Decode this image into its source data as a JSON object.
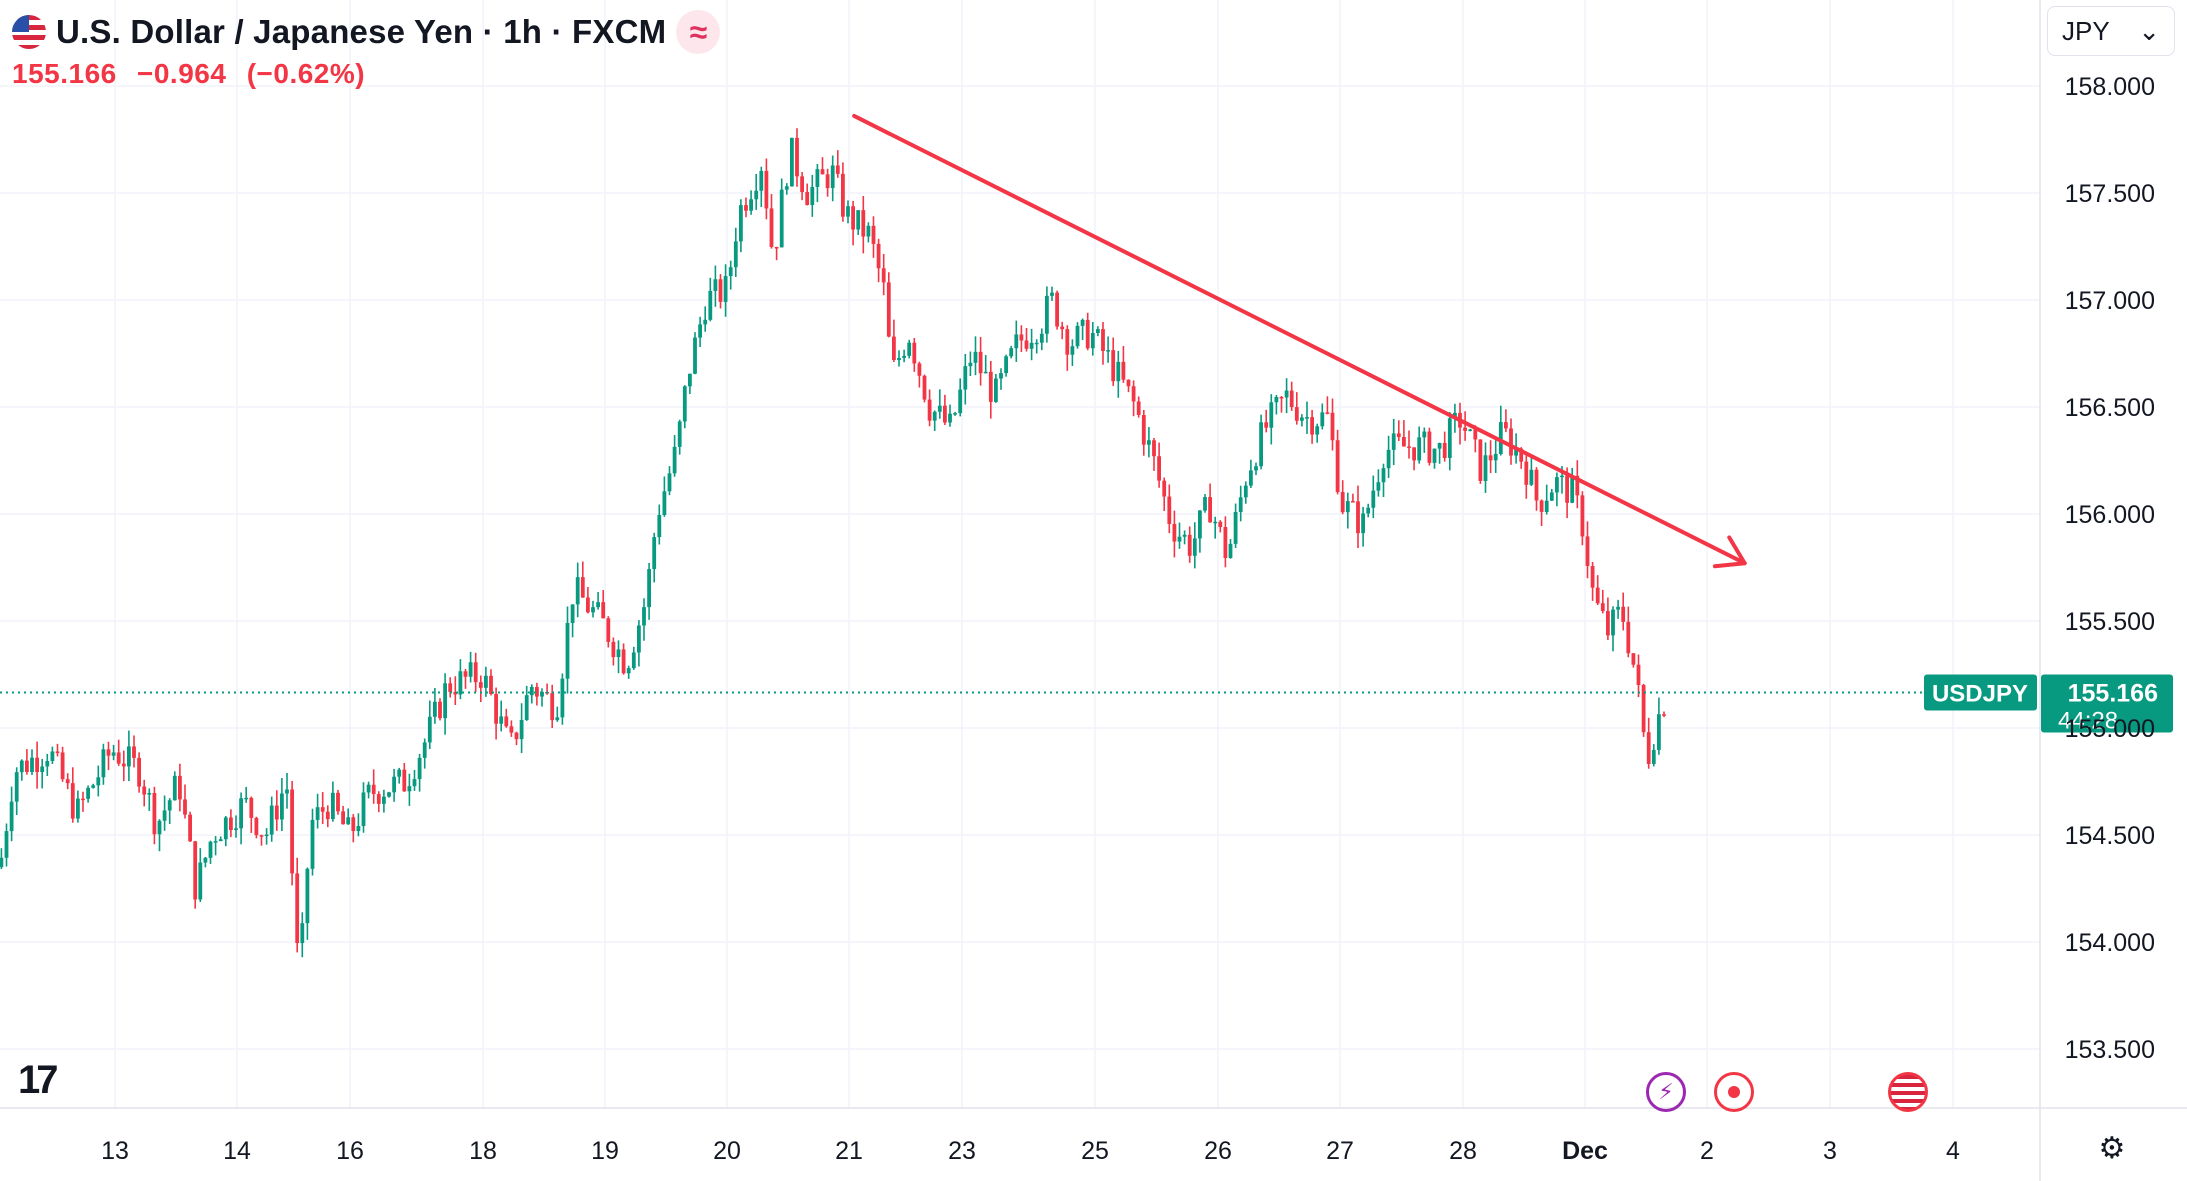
{
  "header": {
    "title": "U.S. Dollar / Japanese Yen · 1h · FXCM",
    "approx_symbol": "≈",
    "price": "155.166",
    "change": "−0.964",
    "change_pct": "(−0.62%)"
  },
  "currency_select": {
    "value": "JPY",
    "chevron": "⌄"
  },
  "price_tag": {
    "symbol": "USDJPY",
    "price": "155.166",
    "countdown": "44:28",
    "color": "#089981"
  },
  "colors": {
    "up": "#089981",
    "down": "#f23645",
    "trendline": "#f23645",
    "grid": "#f0f3fa"
  },
  "icons": [
    "tradingview-logo",
    "lightning-event-icon",
    "record-event-icon",
    "us-flag-event-icon",
    "settings-icon",
    "flag-icon"
  ],
  "chart_data": {
    "type": "candlestick",
    "title": "U.S. Dollar / Japanese Yen · 1h · FXCM",
    "y_ticks": [
      "158.000",
      "157.500",
      "157.000",
      "156.500",
      "156.000",
      "155.500",
      "155.000",
      "154.500",
      "154.000",
      "153.500"
    ],
    "x_ticks": [
      "13",
      "14",
      "16",
      "18",
      "19",
      "20",
      "21",
      "23",
      "25",
      "26",
      "27",
      "28",
      "Dec",
      "2",
      "3",
      "4"
    ],
    "ylim": [
      153.3,
      158.4
    ],
    "last_price": 155.166,
    "path_points": [
      {
        "x": 0,
        "y": 154.35
      },
      {
        "x": 10,
        "y": 154.8
      },
      {
        "x": 35,
        "y": 154.9
      },
      {
        "x": 55,
        "y": 154.6
      },
      {
        "x": 80,
        "y": 154.9
      },
      {
        "x": 100,
        "y": 154.8
      },
      {
        "x": 112,
        "y": 154.55
      },
      {
        "x": 128,
        "y": 154.75
      },
      {
        "x": 140,
        "y": 154.25
      },
      {
        "x": 152,
        "y": 154.5
      },
      {
        "x": 175,
        "y": 154.65
      },
      {
        "x": 190,
        "y": 154.5
      },
      {
        "x": 205,
        "y": 154.75
      },
      {
        "x": 214,
        "y": 153.8
      },
      {
        "x": 222,
        "y": 154.55
      },
      {
        "x": 235,
        "y": 154.65
      },
      {
        "x": 250,
        "y": 154.5
      },
      {
        "x": 265,
        "y": 154.7
      },
      {
        "x": 290,
        "y": 154.75
      },
      {
        "x": 305,
        "y": 154.95
      },
      {
        "x": 320,
        "y": 155.2
      },
      {
        "x": 345,
        "y": 155.25
      },
      {
        "x": 365,
        "y": 154.9
      },
      {
        "x": 380,
        "y": 155.2
      },
      {
        "x": 398,
        "y": 155.1
      },
      {
        "x": 410,
        "y": 155.65
      },
      {
        "x": 430,
        "y": 155.5
      },
      {
        "x": 448,
        "y": 155.3
      },
      {
        "x": 462,
        "y": 155.6
      },
      {
        "x": 470,
        "y": 156.0
      },
      {
        "x": 484,
        "y": 156.3
      },
      {
        "x": 492,
        "y": 156.65
      },
      {
        "x": 505,
        "y": 157.0
      },
      {
        "x": 520,
        "y": 157.05
      },
      {
        "x": 528,
        "y": 157.4
      },
      {
        "x": 545,
        "y": 157.65
      },
      {
        "x": 553,
        "y": 157.2
      },
      {
        "x": 565,
        "y": 157.7
      },
      {
        "x": 578,
        "y": 157.5
      },
      {
        "x": 595,
        "y": 157.6
      },
      {
        "x": 605,
        "y": 157.4
      },
      {
        "x": 622,
        "y": 157.3
      },
      {
        "x": 632,
        "y": 157.05
      },
      {
        "x": 638,
        "y": 156.65
      },
      {
        "x": 650,
        "y": 156.85
      },
      {
        "x": 665,
        "y": 156.5
      },
      {
        "x": 680,
        "y": 156.4
      },
      {
        "x": 695,
        "y": 156.75
      },
      {
        "x": 712,
        "y": 156.55
      },
      {
        "x": 728,
        "y": 156.8
      },
      {
        "x": 745,
        "y": 156.9
      },
      {
        "x": 752,
        "y": 157.0
      },
      {
        "x": 765,
        "y": 156.8
      },
      {
        "x": 780,
        "y": 156.85
      },
      {
        "x": 795,
        "y": 156.7
      },
      {
        "x": 812,
        "y": 156.5
      },
      {
        "x": 825,
        "y": 156.25
      },
      {
        "x": 838,
        "y": 155.95
      },
      {
        "x": 852,
        "y": 155.85
      },
      {
        "x": 865,
        "y": 156.05
      },
      {
        "x": 878,
        "y": 155.8
      },
      {
        "x": 892,
        "y": 156.2
      },
      {
        "x": 905,
        "y": 156.4
      },
      {
        "x": 920,
        "y": 156.55
      },
      {
        "x": 935,
        "y": 156.45
      },
      {
        "x": 950,
        "y": 156.45
      },
      {
        "x": 960,
        "y": 156.05
      },
      {
        "x": 975,
        "y": 155.95
      },
      {
        "x": 990,
        "y": 156.3
      },
      {
        "x": 1010,
        "y": 156.32
      },
      {
        "x": 1030,
        "y": 156.3
      },
      {
        "x": 1045,
        "y": 156.45
      },
      {
        "x": 1060,
        "y": 156.2
      },
      {
        "x": 1075,
        "y": 156.38
      },
      {
        "x": 1090,
        "y": 156.25
      },
      {
        "x": 1100,
        "y": 156.05
      },
      {
        "x": 1112,
        "y": 156.15
      },
      {
        "x": 1125,
        "y": 156.1
      },
      {
        "x": 1132,
        "y": 155.95
      },
      {
        "x": 1140,
        "y": 155.6
      },
      {
        "x": 1150,
        "y": 155.45
      },
      {
        "x": 1160,
        "y": 155.55
      },
      {
        "x": 1170,
        "y": 155.25
      },
      {
        "x": 1178,
        "y": 154.85
      },
      {
        "x": 1186,
        "y": 155.05
      },
      {
        "x": 1193,
        "y": 155.17
      }
    ],
    "trendline": {
      "x1": 611,
      "y1": 157.86,
      "x2": 1248,
      "y2": 155.77
    },
    "grid": "on"
  }
}
